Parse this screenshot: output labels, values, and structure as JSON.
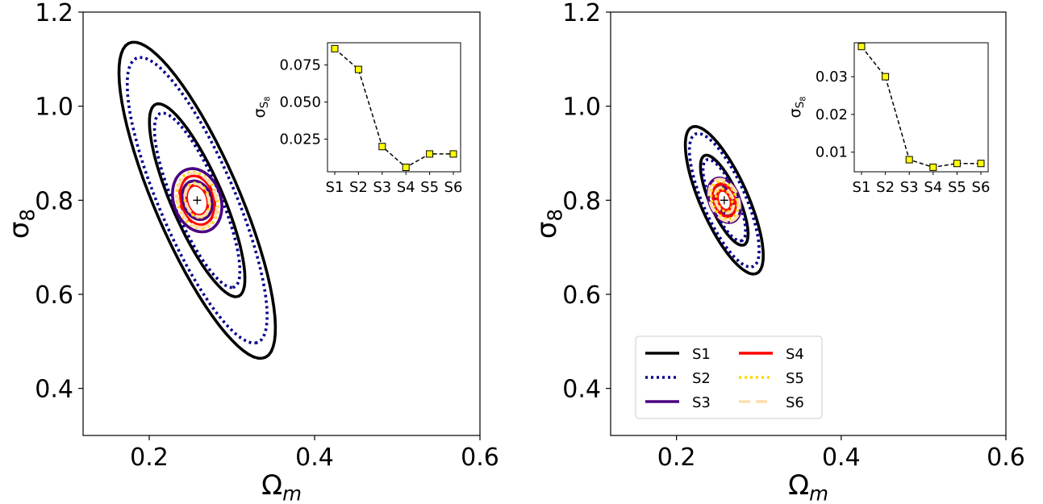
{
  "chart_data": [
    {
      "type": "contour",
      "xlabel": "Ω_m",
      "ylabel": "σ_8",
      "xlim": [
        0.12,
        0.6
      ],
      "ylim": [
        0.3,
        1.2
      ],
      "xticks": [
        "0.2",
        "0.4",
        "0.6"
      ],
      "yticks": [
        "0.4",
        "0.6",
        "0.8",
        "1.0",
        "1.2"
      ],
      "fiducial": {
        "x": 0.258,
        "y": 0.8
      },
      "series": [
        {
          "name": "S1",
          "color": "#000000",
          "style": "solid",
          "sigma_x": 0.038,
          "sigma_y": 0.135,
          "rho": -0.81
        },
        {
          "name": "S2",
          "color": "#00008b",
          "style": "dotted",
          "sigma_x": 0.034,
          "sigma_y": 0.122,
          "rho": -0.81
        },
        {
          "name": "S3",
          "color": "#4b0082",
          "style": "solid",
          "sigma_x": 0.012,
          "sigma_y": 0.027,
          "rho": -0.2
        },
        {
          "name": "S4",
          "color": "#ff0000",
          "style": "solid",
          "sigma_x": 0.0085,
          "sigma_y": 0.021,
          "rho": -0.2
        },
        {
          "name": "S5",
          "color": "#ffd700",
          "style": "dotted",
          "sigma_x": 0.01,
          "sigma_y": 0.024,
          "rho": -0.2
        },
        {
          "name": "S6",
          "color": "#ffdead",
          "style": "dashed",
          "sigma_x": 0.0095,
          "sigma_y": 0.023,
          "rho": -0.2
        }
      ],
      "inset": {
        "ylabel": "σ_S8",
        "categories": [
          "S1",
          "S2",
          "S3",
          "S4",
          "S5",
          "S6"
        ],
        "values": [
          0.086,
          0.072,
          0.02,
          0.006,
          0.015,
          0.015
        ],
        "ylim": [
          0.003,
          0.09
        ],
        "yticks": [
          "0.025",
          "0.050",
          "0.075"
        ]
      }
    },
    {
      "type": "contour",
      "xlabel": "Ω_m",
      "ylabel": "σ_8",
      "xlim": [
        0.12,
        0.6
      ],
      "ylim": [
        0.3,
        1.2
      ],
      "xticks": [
        "0.2",
        "0.4",
        "0.6"
      ],
      "yticks": [
        "0.4",
        "0.6",
        "0.8",
        "1.0",
        "1.2"
      ],
      "fiducial": {
        "x": 0.258,
        "y": 0.8
      },
      "series": [
        {
          "name": "S1",
          "color": "#000000",
          "style": "solid",
          "sigma_x": 0.019,
          "sigma_y": 0.063,
          "rho": -0.75
        },
        {
          "name": "S2",
          "color": "#00008b",
          "style": "dotted",
          "sigma_x": 0.017,
          "sigma_y": 0.057,
          "rho": -0.75
        },
        {
          "name": "S3",
          "color": "#4b0082",
          "style": "solid",
          "sigma_x": 0.008,
          "sigma_y": 0.019,
          "rho": -0.3
        },
        {
          "name": "S4",
          "color": "#ff0000",
          "style": "solid",
          "sigma_x": 0.0055,
          "sigma_y": 0.014,
          "rho": -0.3
        },
        {
          "name": "S5",
          "color": "#ffd700",
          "style": "dotted",
          "sigma_x": 0.0065,
          "sigma_y": 0.016,
          "rho": -0.3
        },
        {
          "name": "S6",
          "color": "#ffdead",
          "style": "dashed",
          "sigma_x": 0.0075,
          "sigma_y": 0.018,
          "rho": -0.3
        }
      ],
      "legend": {
        "placement": "lower-left",
        "ncol": 2,
        "entries": [
          "S1",
          "S2",
          "S3",
          "S4",
          "S5",
          "S6"
        ]
      },
      "inset": {
        "ylabel": "σ_S8",
        "categories": [
          "S1",
          "S2",
          "S3",
          "S4",
          "S5",
          "S6"
        ],
        "values": [
          0.038,
          0.03,
          0.008,
          0.006,
          0.007,
          0.007
        ],
        "ylim": [
          0.0048,
          0.039
        ],
        "yticks": [
          "0.01",
          "0.02",
          "0.03"
        ]
      }
    }
  ]
}
